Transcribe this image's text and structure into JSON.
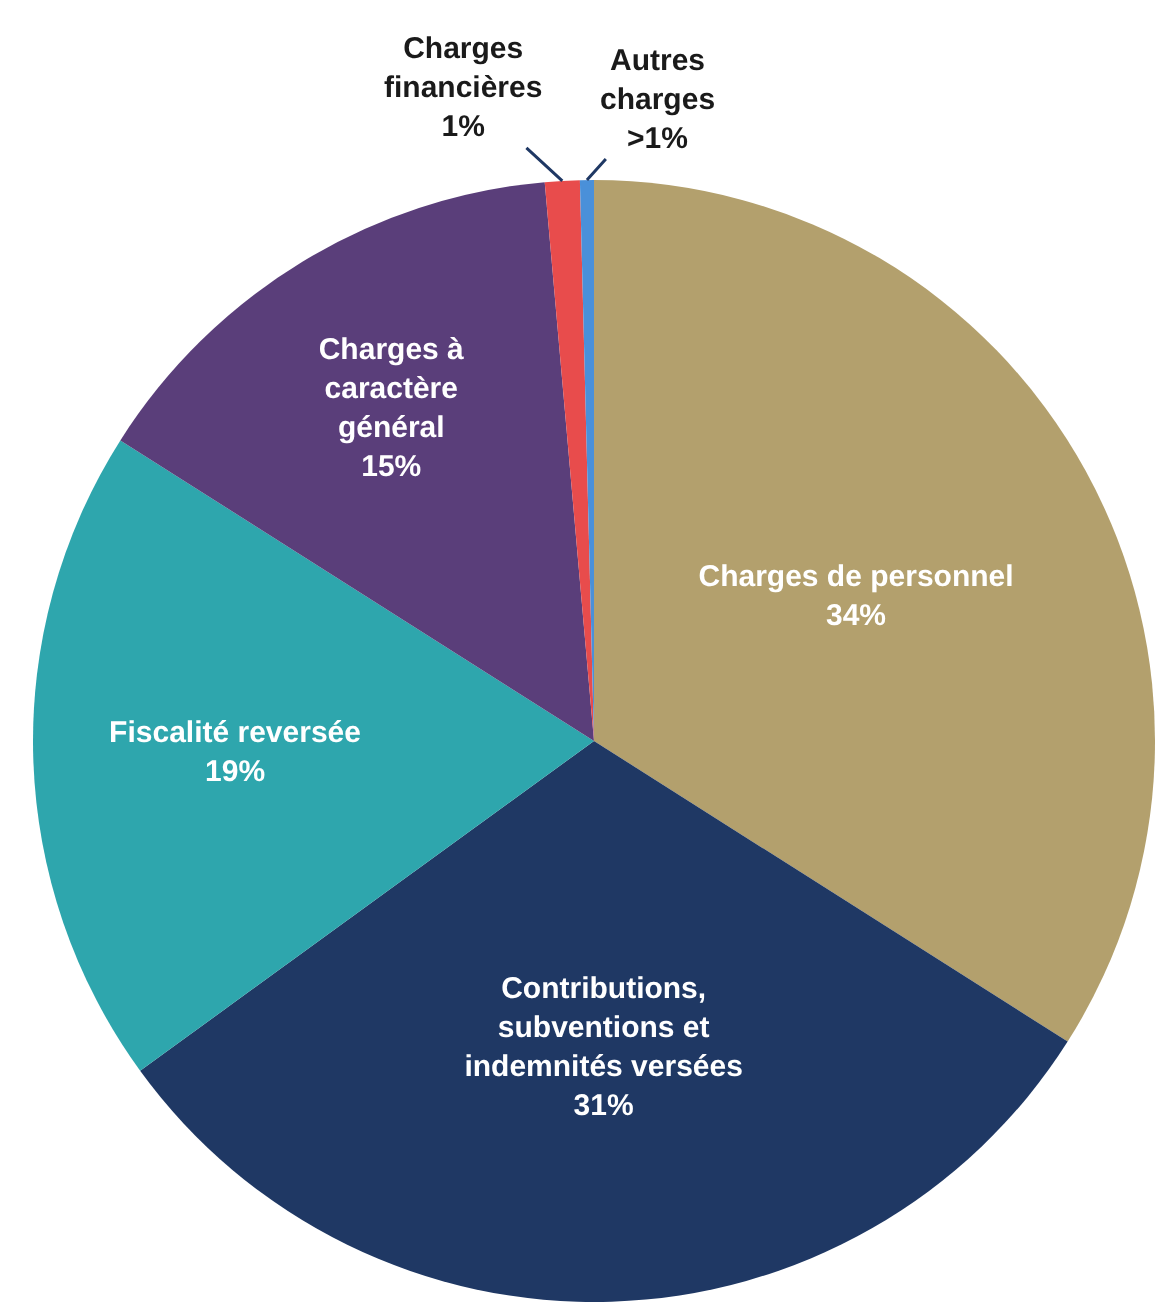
{
  "chart_data": {
    "type": "pie",
    "categories": [
      "Charges de personnel",
      "Contributions,\nsubventions et\nindemnités versées",
      "Fiscalité reversée",
      "Charges à\ncaractère\ngénéral",
      "Charges\nfinancières",
      "Autres\ncharges"
    ],
    "values": [
      34,
      31,
      19,
      14.6,
      1,
      0.4
    ],
    "value_labels": [
      "34%",
      "31%",
      "19%",
      "15%",
      "1%",
      ">1%"
    ],
    "colors": [
      "#b3a06d",
      "#1f3864",
      "#2ea6ad",
      "#5a3e7a",
      "#e84c4c",
      "#4a90d9"
    ],
    "legend": false
  }
}
